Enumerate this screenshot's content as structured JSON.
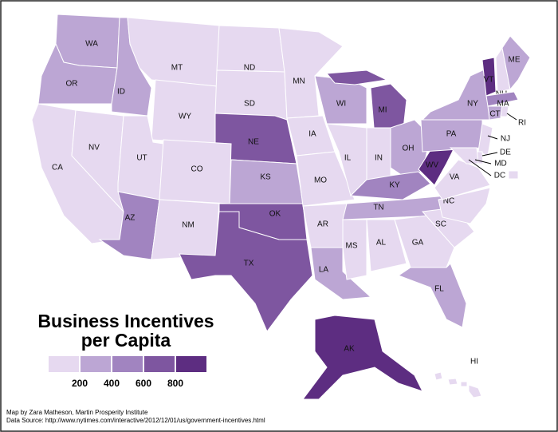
{
  "chart_data": {
    "type": "choropleth",
    "title": [
      "Business Incentives",
      "per Capita"
    ],
    "legend": {
      "colors": [
        "#e6d9f0",
        "#bca6d4",
        "#a184c0",
        "#7e56a0",
        "#5d2d81"
      ],
      "ticks": [
        200,
        400,
        600,
        800
      ]
    },
    "regions": [
      {
        "name": "WA",
        "color": "#bca6d4"
      },
      {
        "name": "OR",
        "color": "#bca6d4"
      },
      {
        "name": "ID",
        "color": "#bca6d4"
      },
      {
        "name": "MT",
        "color": "#e6d9f0"
      },
      {
        "name": "WY",
        "color": "#e6d9f0"
      },
      {
        "name": "ND",
        "color": "#e6d9f0"
      },
      {
        "name": "SD",
        "color": "#e6d9f0"
      },
      {
        "name": "NE",
        "color": "#7e56a0"
      },
      {
        "name": "CA",
        "color": "#e6d9f0"
      },
      {
        "name": "NV",
        "color": "#e6d9f0"
      },
      {
        "name": "UT",
        "color": "#e6d9f0"
      },
      {
        "name": "CO",
        "color": "#e6d9f0"
      },
      {
        "name": "AZ",
        "color": "#a184c0"
      },
      {
        "name": "NM",
        "color": "#e6d9f0"
      },
      {
        "name": "KS",
        "color": "#bca6d4"
      },
      {
        "name": "OK",
        "color": "#7e56a0"
      },
      {
        "name": "TX",
        "color": "#7e56a0"
      },
      {
        "name": "MN",
        "color": "#e6d9f0"
      },
      {
        "name": "IA",
        "color": "#e6d9f0"
      },
      {
        "name": "MO",
        "color": "#e6d9f0"
      },
      {
        "name": "AR",
        "color": "#e6d9f0"
      },
      {
        "name": "LA",
        "color": "#bca6d4"
      },
      {
        "name": "WI",
        "color": "#bca6d4"
      },
      {
        "name": "MI",
        "color": "#7e56a0"
      },
      {
        "name": "IL",
        "color": "#e6d9f0"
      },
      {
        "name": "IN",
        "color": "#e6d9f0"
      },
      {
        "name": "OH",
        "color": "#bca6d4"
      },
      {
        "name": "KY",
        "color": "#a184c0"
      },
      {
        "name": "TN",
        "color": "#bca6d4"
      },
      {
        "name": "MS",
        "color": "#e6d9f0"
      },
      {
        "name": "AL",
        "color": "#e6d9f0"
      },
      {
        "name": "GA",
        "color": "#e6d9f0"
      },
      {
        "name": "FL",
        "color": "#bca6d4"
      },
      {
        "name": "SC",
        "color": "#e6d9f0"
      },
      {
        "name": "NC",
        "color": "#e6d9f0"
      },
      {
        "name": "VA",
        "color": "#e6d9f0"
      },
      {
        "name": "WV",
        "color": "#5d2d81"
      },
      {
        "name": "PA",
        "color": "#bca6d4"
      },
      {
        "name": "NY",
        "color": "#bca6d4"
      },
      {
        "name": "VT",
        "color": "#5d2d81"
      },
      {
        "name": "NH",
        "color": "#e6d9f0"
      },
      {
        "name": "ME",
        "color": "#bca6d4"
      },
      {
        "name": "MA",
        "color": "#a184c0"
      },
      {
        "name": "CT",
        "color": "#bca6d4"
      },
      {
        "name": "RI",
        "color": "#e6d9f0"
      },
      {
        "name": "NJ",
        "color": "#e6d9f0"
      },
      {
        "name": "DE",
        "color": "#e6d9f0"
      },
      {
        "name": "MD",
        "color": "#e6d9f0"
      },
      {
        "name": "DC",
        "color": "#e6d9f0"
      },
      {
        "name": "AK",
        "color": "#5d2d81"
      },
      {
        "name": "HI",
        "color": "#e6d9f0"
      }
    ],
    "credits": [
      "Map by Zara Matheson, Martin Prosperity Institute",
      "Data Source: http://www.nytimes.com/interactive/2012/12/01/us/government-incentives.html"
    ]
  }
}
